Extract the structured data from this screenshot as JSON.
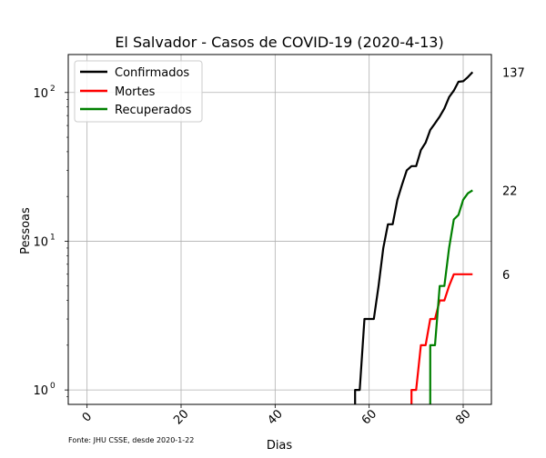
{
  "chart_data": {
    "type": "line",
    "title": "El Salvador - Casos de COVID-19 (2020-4-13)",
    "xlabel": "Dias",
    "ylabel": "Pessoas",
    "source_note": "Fonte: JHU CSSE, desde 2020-1-22",
    "yscale": "log",
    "xlim": [
      -4,
      86
    ],
    "ylim": [
      0.8,
      180
    ],
    "x_ticks": [
      0,
      20,
      40,
      60,
      80
    ],
    "y_ticks": [
      {
        "value": 1,
        "label": "10",
        "exp": "0"
      },
      {
        "value": 10,
        "label": "10",
        "exp": "1"
      },
      {
        "value": 100,
        "label": "10",
        "exp": "2"
      }
    ],
    "grid": true,
    "legend_position": "upper-left",
    "series": [
      {
        "name": "Confirmados",
        "color": "#000000",
        "end_label": "137",
        "x": [
          57,
          57,
          58,
          59,
          60,
          61,
          62,
          63,
          64,
          65,
          66,
          67,
          68,
          69,
          70,
          71,
          72,
          73,
          74,
          75,
          76,
          77,
          78,
          79,
          80,
          81,
          82
        ],
        "values": [
          0.8,
          1,
          1,
          3,
          3,
          3,
          5,
          9,
          13,
          13,
          19,
          24,
          30,
          32,
          32,
          41,
          46,
          56,
          62,
          69,
          78,
          93,
          103,
          118,
          119,
          127,
          137
        ]
      },
      {
        "name": "Mortes",
        "color": "#ff0000",
        "end_label": "6",
        "x": [
          69,
          69,
          70,
          71,
          72,
          73,
          74,
          75,
          76,
          77,
          78,
          79,
          80,
          81,
          82
        ],
        "values": [
          0.8,
          1,
          1,
          2,
          2,
          3,
          3,
          4,
          4,
          5,
          6,
          6,
          6,
          6,
          6
        ]
      },
      {
        "name": "Recuperados",
        "color": "#008000",
        "end_label": "22",
        "x": [
          73,
          73,
          74,
          75,
          76,
          77,
          78,
          79,
          80,
          81,
          82
        ],
        "values": [
          0.8,
          2,
          2,
          5,
          5,
          9,
          14,
          15,
          19,
          21,
          22
        ]
      }
    ]
  }
}
